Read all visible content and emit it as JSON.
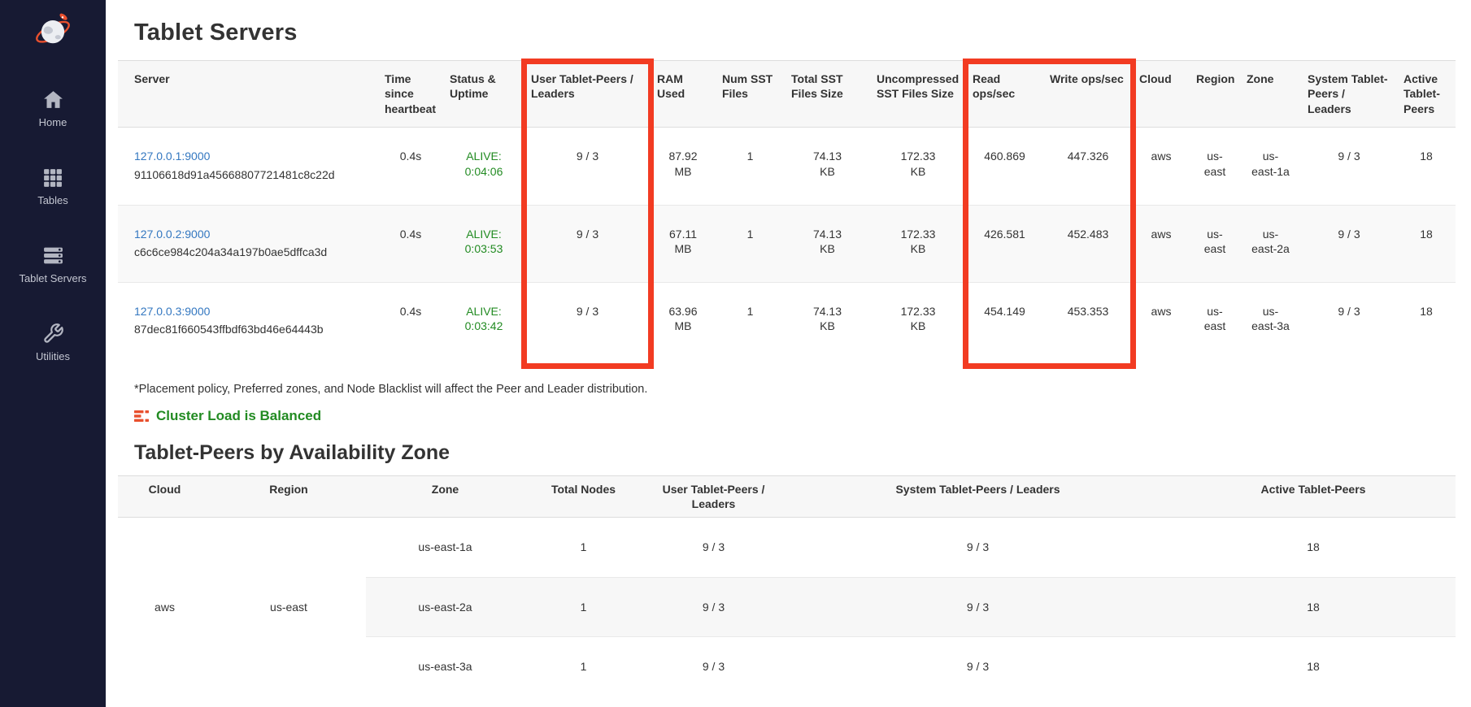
{
  "sidebar": {
    "items": [
      {
        "label": "Home"
      },
      {
        "label": "Tables"
      },
      {
        "label": "Tablet Servers"
      },
      {
        "label": "Utilities"
      }
    ]
  },
  "page": {
    "title": "Tablet Servers",
    "footnote": "*Placement policy, Preferred zones, and Node Blacklist will affect the Peer and Leader distribution.",
    "load_status": "Cluster Load is Balanced",
    "section2_title": "Tablet-Peers by Availability Zone"
  },
  "servers_table": {
    "columns": [
      "Server",
      "Time since heartbeat",
      "Status & Uptime",
      "User Tablet-Peers / Leaders",
      "RAM Used",
      "Num SST Files",
      "Total SST Files Size",
      "Uncompressed SST Files Size",
      "Read ops/sec",
      "Write ops/sec",
      "Cloud",
      "Region",
      "Zone",
      "System Tablet-Peers / Leaders",
      "Active Tablet-Peers"
    ],
    "rows": [
      {
        "address": "127.0.0.1:9000",
        "uuid": "91106618d91a45668807721481c8c22d",
        "heartbeat": "0.4s",
        "status": "ALIVE:",
        "uptime": "0:04:06",
        "user_peers": "9 / 3",
        "ram_value": "87.92",
        "ram_unit": "MB",
        "num_sst": "1",
        "sst_value": "74.13",
        "sst_unit": "KB",
        "unc_value": "172.33",
        "unc_unit": "KB",
        "read_ops": "460.869",
        "write_ops": "447.326",
        "cloud": "aws",
        "region": "us-east",
        "zone": "us-east-1a",
        "system_peers": "9 / 3",
        "active_peers": "18"
      },
      {
        "address": "127.0.0.2:9000",
        "uuid": "c6c6ce984c204a34a197b0ae5dffca3d",
        "heartbeat": "0.4s",
        "status": "ALIVE:",
        "uptime": "0:03:53",
        "user_peers": "9 / 3",
        "ram_value": "67.11",
        "ram_unit": "MB",
        "num_sst": "1",
        "sst_value": "74.13",
        "sst_unit": "KB",
        "unc_value": "172.33",
        "unc_unit": "KB",
        "read_ops": "426.581",
        "write_ops": "452.483",
        "cloud": "aws",
        "region": "us-east",
        "zone": "us-east-2a",
        "system_peers": "9 / 3",
        "active_peers": "18"
      },
      {
        "address": "127.0.0.3:9000",
        "uuid": "87dec81f660543ffbdf63bd46e64443b",
        "heartbeat": "0.4s",
        "status": "ALIVE:",
        "uptime": "0:03:42",
        "user_peers": "9 / 3",
        "ram_value": "63.96",
        "ram_unit": "MB",
        "num_sst": "1",
        "sst_value": "74.13",
        "sst_unit": "KB",
        "unc_value": "172.33",
        "unc_unit": "KB",
        "read_ops": "454.149",
        "write_ops": "453.353",
        "cloud": "aws",
        "region": "us-east",
        "zone": "us-east-3a",
        "system_peers": "9 / 3",
        "active_peers": "18"
      }
    ]
  },
  "zones_table": {
    "columns": [
      "Cloud",
      "Region",
      "Zone",
      "Total Nodes",
      "User Tablet-Peers / Leaders",
      "System Tablet-Peers / Leaders",
      "Active Tablet-Peers"
    ],
    "cloud": "aws",
    "region": "us-east",
    "rows": [
      {
        "zone": "us-east-1a",
        "total_nodes": "1",
        "user_peers": "9 / 3",
        "system_peers": "9 / 3",
        "active_peers": "18"
      },
      {
        "zone": "us-east-2a",
        "total_nodes": "1",
        "user_peers": "9 / 3",
        "system_peers": "9 / 3",
        "active_peers": "18"
      },
      {
        "zone": "us-east-3a",
        "total_nodes": "1",
        "user_peers": "9 / 3",
        "system_peers": "9 / 3",
        "active_peers": "18"
      }
    ]
  },
  "colors": {
    "highlight": "#f23b22",
    "alive_green": "#228b22",
    "balanced_green": "#228b22",
    "link_blue": "#3377c0",
    "sidebar_bg": "#171a33",
    "balance_icon_orange": "#e8502e"
  }
}
